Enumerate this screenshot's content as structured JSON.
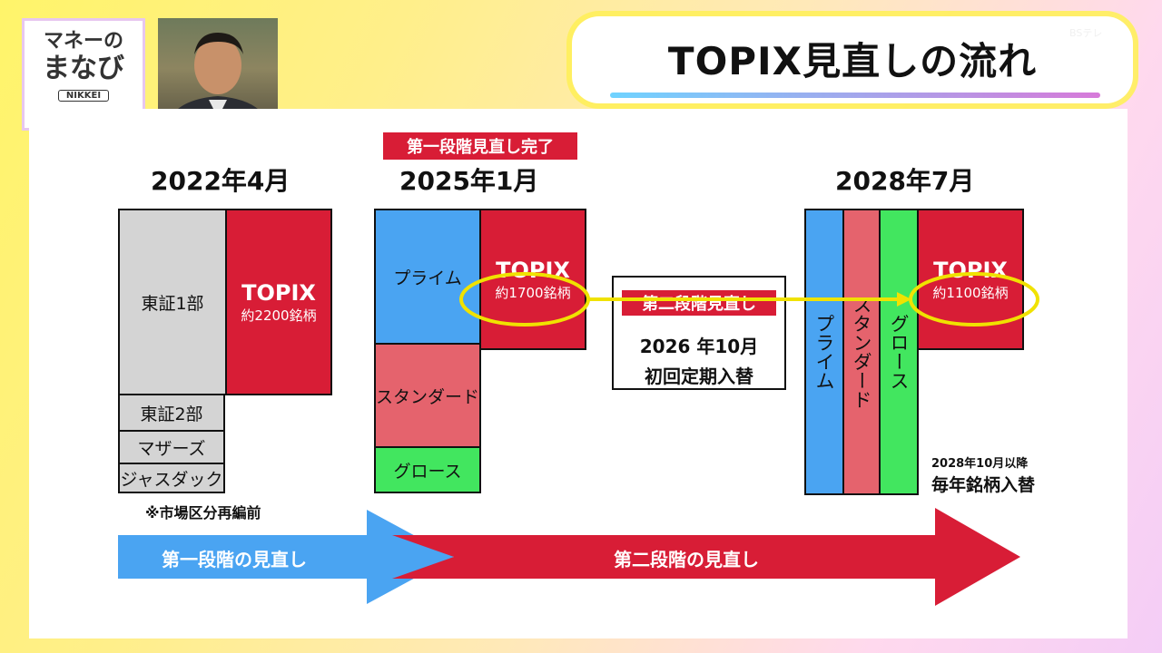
{
  "logo": {
    "line1": "マネーの",
    "line2": "まなび",
    "brand": "NIKKEI"
  },
  "title": "TOPIX見直しの流れ",
  "watermark": "BSテレ",
  "periods": [
    {
      "date": "2022年4月"
    },
    {
      "date": "2025年1月",
      "badge": "第一段階見直し完了"
    },
    {
      "date": "2028年7月"
    }
  ],
  "col2022": {
    "segments": [
      "東証1部",
      "東証2部",
      "マザーズ",
      "ジャスダック"
    ],
    "topix": {
      "label": "TOPIX",
      "count": "約2200銘柄"
    },
    "note": "※市場区分再編前"
  },
  "col2025": {
    "segments": [
      "プライム",
      "スタンダード",
      "グロース"
    ],
    "topix": {
      "label": "TOPIX",
      "count": "約1700銘柄"
    }
  },
  "middle": {
    "badge": "第二段階見直し",
    "date": "2026 年10月",
    "event": "初回定期入替"
  },
  "col2028": {
    "segments": [
      "プライム",
      "スタンダード",
      "グロース"
    ],
    "topix": {
      "label": "TOPIX",
      "count": "約1100銘柄"
    },
    "note_small": "2028年10月以降",
    "note_large": "毎年銘柄入替"
  },
  "arrows": {
    "phase1": "第一段階の見直し",
    "phase2": "第二段階の見直し"
  },
  "colors": {
    "red": "#d81d36",
    "blue": "#4aa4f2",
    "pink": "#e5636d",
    "green": "#42e65f",
    "gray": "#d4d4d4",
    "highlight": "#f0e200"
  }
}
